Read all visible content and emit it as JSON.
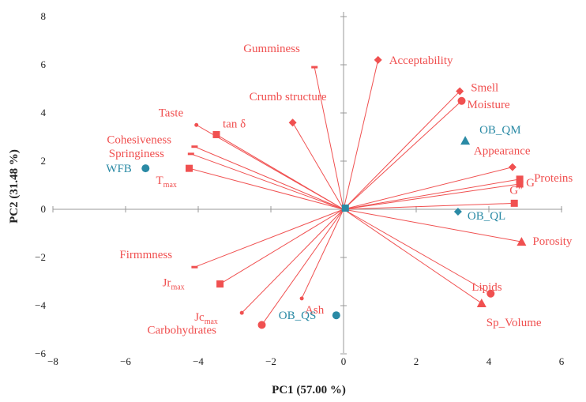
{
  "chart_data": {
    "type": "scatter",
    "title": "",
    "xlabel": "PC1 (57.00 %)",
    "ylabel": "PC2 (31.48 %)",
    "xlim": [
      -8,
      6
    ],
    "ylim": [
      -6,
      8
    ],
    "xticks": [
      "−8",
      "−6",
      "−4",
      "−2",
      "0",
      "2",
      "4",
      "6"
    ],
    "yticks": [
      "−6",
      "−4",
      "−2",
      "0",
      "2",
      "4",
      "6",
      "8"
    ],
    "grid": false,
    "colors": {
      "variables": "#f05050",
      "samples": "#2a8aa5"
    },
    "variables": [
      {
        "label": "Gumminess",
        "x": -0.8,
        "y": 5.9,
        "marker": "dash"
      },
      {
        "label": "Acceptability",
        "x": 0.95,
        "y": 6.2,
        "marker": "diamond"
      },
      {
        "label": "Smell",
        "x": 3.2,
        "y": 4.9,
        "marker": "diamond"
      },
      {
        "label": "Moisture",
        "x": 3.25,
        "y": 4.5,
        "marker": "circle"
      },
      {
        "label": "Crumb structure",
        "x": -1.4,
        "y": 3.6,
        "marker": "diamond"
      },
      {
        "label": "Taste",
        "x": -4.05,
        "y": 3.5,
        "marker": "dot"
      },
      {
        "label": "tan δ",
        "x": -3.5,
        "y": 3.1,
        "marker": "square"
      },
      {
        "label": "Cohesiveness",
        "x": -4.1,
        "y": 2.6,
        "marker": "dash"
      },
      {
        "label": "Springiness",
        "x": -4.2,
        "y": 2.3,
        "marker": "dash"
      },
      {
        "label": "T",
        "sub": "max",
        "x": -4.25,
        "y": 1.7,
        "marker": "square"
      },
      {
        "label": "Appearance",
        "x": 4.65,
        "y": 1.75,
        "marker": "diamond"
      },
      {
        "label": "Proteins",
        "x": 4.85,
        "y": 1.25,
        "marker": "square"
      },
      {
        "label": "G′",
        "x": 4.85,
        "y": 1.05,
        "marker": "square"
      },
      {
        "label": "G″",
        "x": 4.7,
        "y": 0.25,
        "marker": "square"
      },
      {
        "label": "Porosity",
        "x": 4.9,
        "y": -1.35,
        "marker": "triangle"
      },
      {
        "label": "Firmmness",
        "x": -4.1,
        "y": -2.4,
        "marker": "dash"
      },
      {
        "label": "Jr",
        "sub": "max",
        "x": -3.4,
        "y": -3.1,
        "marker": "square"
      },
      {
        "label": "Jc",
        "sub": "max",
        "x": -2.8,
        "y": -4.3,
        "marker": "dot"
      },
      {
        "label": "Ash",
        "x": -1.15,
        "y": -3.7,
        "marker": "dot"
      },
      {
        "label": "Carbohydrates",
        "x": -2.25,
        "y": -4.8,
        "marker": "circle"
      },
      {
        "label": "Lipids",
        "x": 4.05,
        "y": -3.5,
        "marker": "circle"
      },
      {
        "label": "Sp_Volume",
        "x": 3.8,
        "y": -3.9,
        "marker": "triangle"
      }
    ],
    "samples": [
      {
        "label": "WFB",
        "x": -5.45,
        "y": 1.7,
        "marker": "circle"
      },
      {
        "label": "OB_QM",
        "x": 3.35,
        "y": 2.85,
        "marker": "triangle"
      },
      {
        "label": "OB_QL",
        "x": 3.15,
        "y": -0.1,
        "marker": "diamond"
      },
      {
        "label": "OB_QS",
        "x": -0.2,
        "y": -4.4,
        "marker": "circle"
      },
      {
        "label": "",
        "x": 0.05,
        "y": 0.05,
        "marker": "square"
      }
    ]
  }
}
